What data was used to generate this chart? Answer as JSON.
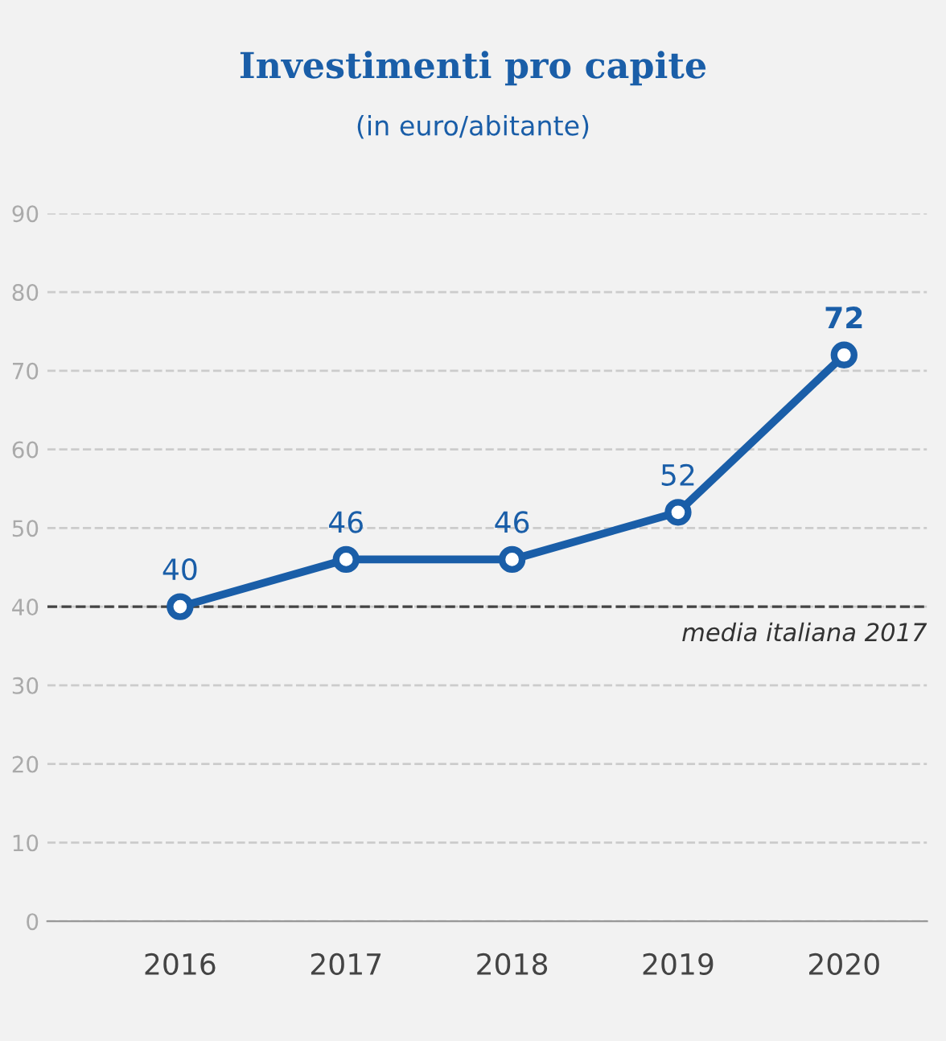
{
  "chart_data": {
    "type": "line",
    "title": "Investimenti pro capite",
    "subtitle": "(in euro/abitante)",
    "categories": [
      "2016",
      "2017",
      "2018",
      "2019",
      "2020"
    ],
    "series": [
      {
        "color": "#1a5ea8",
        "values": [
          40,
          46,
          46,
          52,
          72
        ]
      }
    ],
    "ylim": [
      0,
      90
    ],
    "yticks": [
      0,
      10,
      20,
      30,
      40,
      50,
      60,
      70,
      80,
      90
    ],
    "grid": "y",
    "marker": "circle",
    "line_style": "solid",
    "data_labels": true,
    "ref_lines": [
      {
        "axis": "y",
        "value": 40,
        "label": "media italiana 2017",
        "color": "#444444",
        "line_style": "dashed"
      }
    ]
  }
}
